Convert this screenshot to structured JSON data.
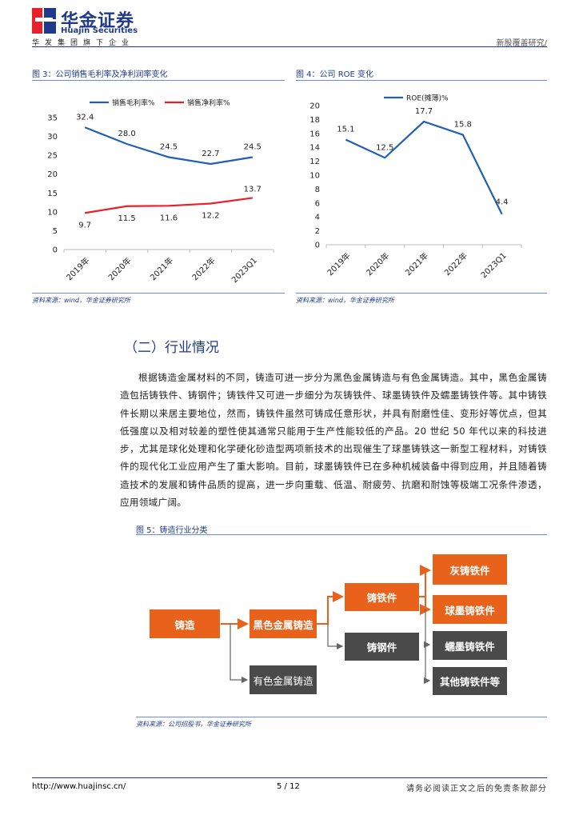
{
  "header": {
    "logo_cn": "华金证券",
    "logo_en": "Huajin Securities",
    "slogan": "华发集团旗下企业",
    "right_text": "新股覆盖研究/"
  },
  "figure3": {
    "title": "图 3：公司销售毛利率及净利润率变化",
    "source": "资料来源：wind，华金证券研究所"
  },
  "figure4": {
    "title": "图 4：公司 ROE 变化",
    "source": "资料来源：wind，华金证券研究所"
  },
  "chart_data": [
    {
      "type": "line",
      "title": "",
      "categories": [
        "2019年",
        "2020年",
        "2021年",
        "2022年",
        "2023Q1"
      ],
      "series": [
        {
          "name": "销售毛利率%",
          "color": "#1f5fb8",
          "values": [
            32.4,
            28.0,
            24.5,
            22.7,
            24.5
          ]
        },
        {
          "name": "销售净利率%",
          "color": "#e8202a",
          "values": [
            9.7,
            11.5,
            11.6,
            12.2,
            13.7
          ]
        }
      ],
      "data_labels": [
        [
          "32.4",
          "28.0",
          "24.5",
          "22.7",
          "24.5"
        ],
        [
          "9.7",
          "11.5",
          "11.6",
          "12.2",
          "13.7"
        ]
      ],
      "yticks": [
        "0",
        "5",
        "10",
        "15",
        "20",
        "25",
        "30",
        "35"
      ],
      "ylim": [
        0,
        35
      ],
      "legend": "top"
    },
    {
      "type": "line",
      "title": "",
      "categories": [
        "2019年",
        "2020年",
        "2021年",
        "2022年",
        "2023Q1"
      ],
      "series": [
        {
          "name": "ROE(摊薄)%",
          "color": "#1f5fb8",
          "values": [
            15.1,
            12.5,
            17.7,
            15.8,
            4.4
          ]
        }
      ],
      "data_labels": [
        [
          "15.1",
          "12.5",
          "17.7",
          "15.8",
          "4.4"
        ]
      ],
      "yticks": [
        "0",
        "2",
        "4",
        "6",
        "8",
        "10",
        "12",
        "14",
        "16",
        "18",
        "20"
      ],
      "ylim": [
        0,
        20
      ],
      "legend": "top"
    }
  ],
  "section": {
    "title": "（二）行业情况",
    "paragraph": "根据铸造金属材料的不同，铸造可进一步分为黑色金属铸造与有色金属铸造。其中，黑色金属铸造包括铸铁件、铸钢件；铸铁件又可进一步细分为灰铸铁件、球墨铸铁件及蠕墨铸铁件等。其中铸铁件长期以来居主要地位，然而，铸铁件虽然可铸成任意形状，并具有耐磨性佳、变形好等优点，但其低强度以及相对较差的塑性使其通常只能用于生产性能较低的产品。20 世纪 50 年代以来的科技进步，尤其是球化处理和化学硬化砂造型两项新技术的出现催生了球墨铸铁这一新型工程材料，对铸铁件的现代化工业应用产生了重大影响。目前，球墨铸铁件已在多种机械装备中得到应用，并且随着铸造技术的发展和铸件品质的提高，进一步向重载、低温、耐疲劳、抗磨和耐蚀等极端工况条件渗透，应用领域广阔。"
  },
  "figure5": {
    "title": "图 5：铸造行业分类",
    "source": "资料来源：公司招股书，华金证券研究所",
    "nodes": {
      "casting": "铸造",
      "ferrous": "黑色金属铸造",
      "nonferrous": "有色金属铸造",
      "iron": "铸铁件",
      "steel": "铸钢件",
      "gray_iron": "灰铸铁件",
      "ductile_iron": "球墨铸铁件",
      "vermicular_iron": "蠕墨铸铁件",
      "other_iron": "其他铸铁件等"
    },
    "colors": {
      "accent": "#e8621c",
      "dark": "#4a4a4a",
      "line": "#e8621c"
    }
  },
  "footer": {
    "url": "http://www.huajinsc.cn/",
    "page": "5 / 12",
    "note": "请务必阅读正文之后的免责条款部分"
  }
}
